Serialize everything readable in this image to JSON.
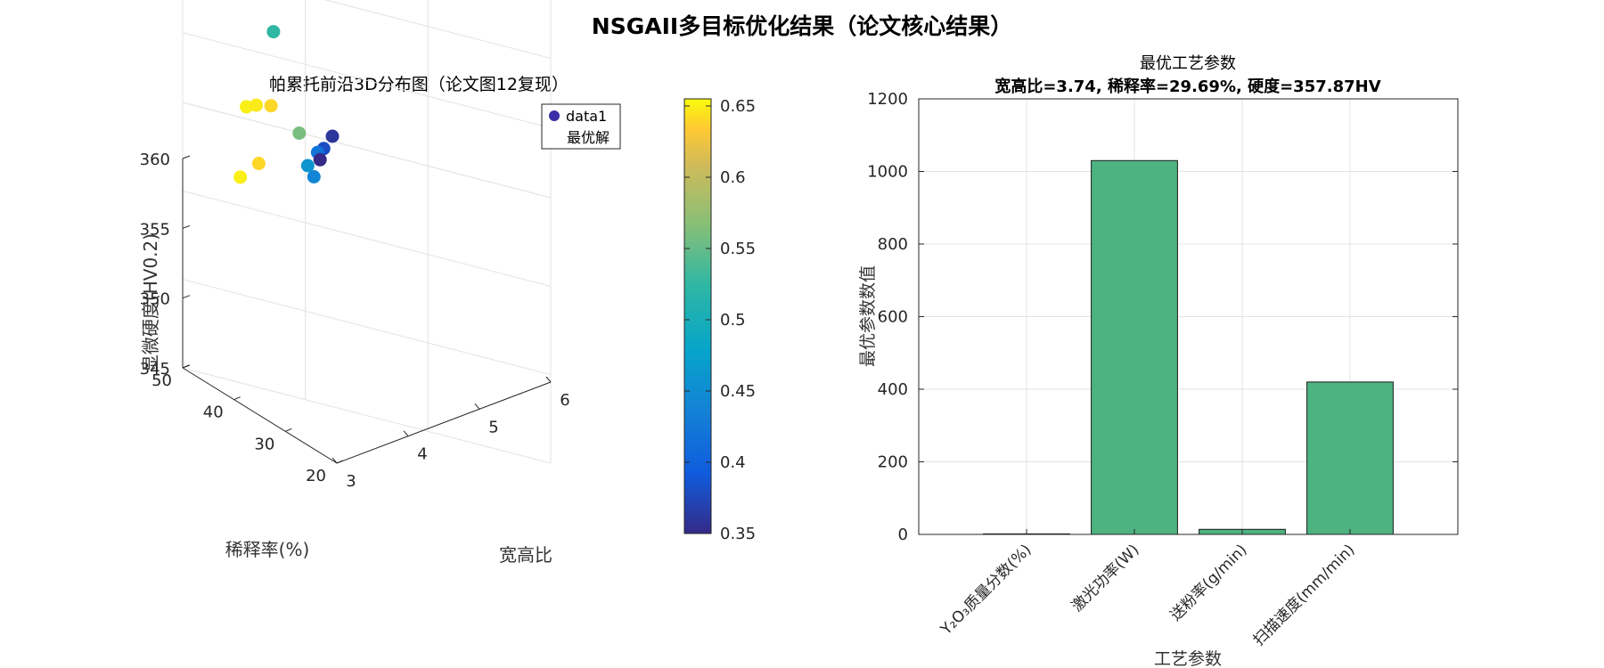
{
  "figure": {
    "title": "NSGAII多目标优化结果（论文核心结果）"
  },
  "chart_data": [
    {
      "type": "scatter",
      "title": "帕累托前沿3D分布图（论文图12复现）",
      "xlabel": "宽高比",
      "ylabel": "稀释率(%)",
      "zlabel": "显微硬度(HV0.2)",
      "xlim": [
        3,
        6
      ],
      "ylim": [
        20,
        50
      ],
      "zlim": [
        345,
        360
      ],
      "xticks": [
        "3",
        "4",
        "5",
        "6"
      ],
      "yticks": [
        "20",
        "30",
        "40",
        "50"
      ],
      "zticks": [
        "345",
        "350",
        "355",
        "360"
      ],
      "grid": true,
      "legend": {
        "entries": [
          "data1",
          "最优解"
        ],
        "position": "top-right"
      },
      "colorbar": {
        "ticks": [
          "0.35",
          "0.4",
          "0.45",
          "0.5",
          "0.55",
          "0.6",
          "0.65"
        ],
        "range": [
          0.35,
          0.655
        ],
        "colormap": "parula"
      },
      "points": [
        {
          "x": 3.52,
          "y": 34.4,
          "z": 355.0,
          "c": 0.65
        },
        {
          "x": 3.6,
          "y": 33.3,
          "z": 354.6,
          "c": 0.648
        },
        {
          "x": 3.72,
          "y": 33.4,
          "z": 354.9,
          "c": 0.64
        },
        {
          "x": 3.74,
          "y": 29.7,
          "z": 357.9,
          "c": 0.525
        },
        {
          "x": 3.95,
          "y": 31.1,
          "z": 352.0,
          "c": 0.56
        },
        {
          "x": 3.47,
          "y": 34.8,
          "z": 350.1,
          "c": 0.65
        },
        {
          "x": 3.62,
          "y": 33.5,
          "z": 350.6,
          "c": 0.64
        },
        {
          "x": 4.02,
          "y": 30.9,
          "z": 349.7,
          "c": 0.46
        },
        {
          "x": 4.15,
          "y": 28.5,
          "z": 349.7,
          "c": 0.38
        },
        {
          "x": 4.1,
          "y": 28.8,
          "z": 349.5,
          "c": 0.42
        },
        {
          "x": 4.07,
          "y": 30.4,
          "z": 348.7,
          "c": 0.44
        },
        {
          "x": 4.22,
          "y": 26.7,
          "z": 349.6,
          "c": 0.36
        },
        {
          "x": 4.12,
          "y": 27.5,
          "z": 348.2,
          "c": 0.35
        }
      ]
    },
    {
      "type": "bar",
      "title": "最优工艺参数",
      "subtitle": "宽高比=3.74, 稀释率=29.69%, 硬度=357.87HV",
      "categories": [
        "Y₂O₃质量分数(%)",
        "激光功率(W)",
        "送粉率(g/min)",
        "扫描速度(mm/min)"
      ],
      "values": [
        1.5,
        1030,
        14,
        420
      ],
      "xlabel": "工艺参数",
      "ylabel": "最优参数数值",
      "ylim": [
        0,
        1200
      ],
      "yticks": [
        "0",
        "200",
        "400",
        "600",
        "800",
        "1000",
        "1200"
      ],
      "grid": true,
      "bar_color": "#4db380"
    }
  ]
}
